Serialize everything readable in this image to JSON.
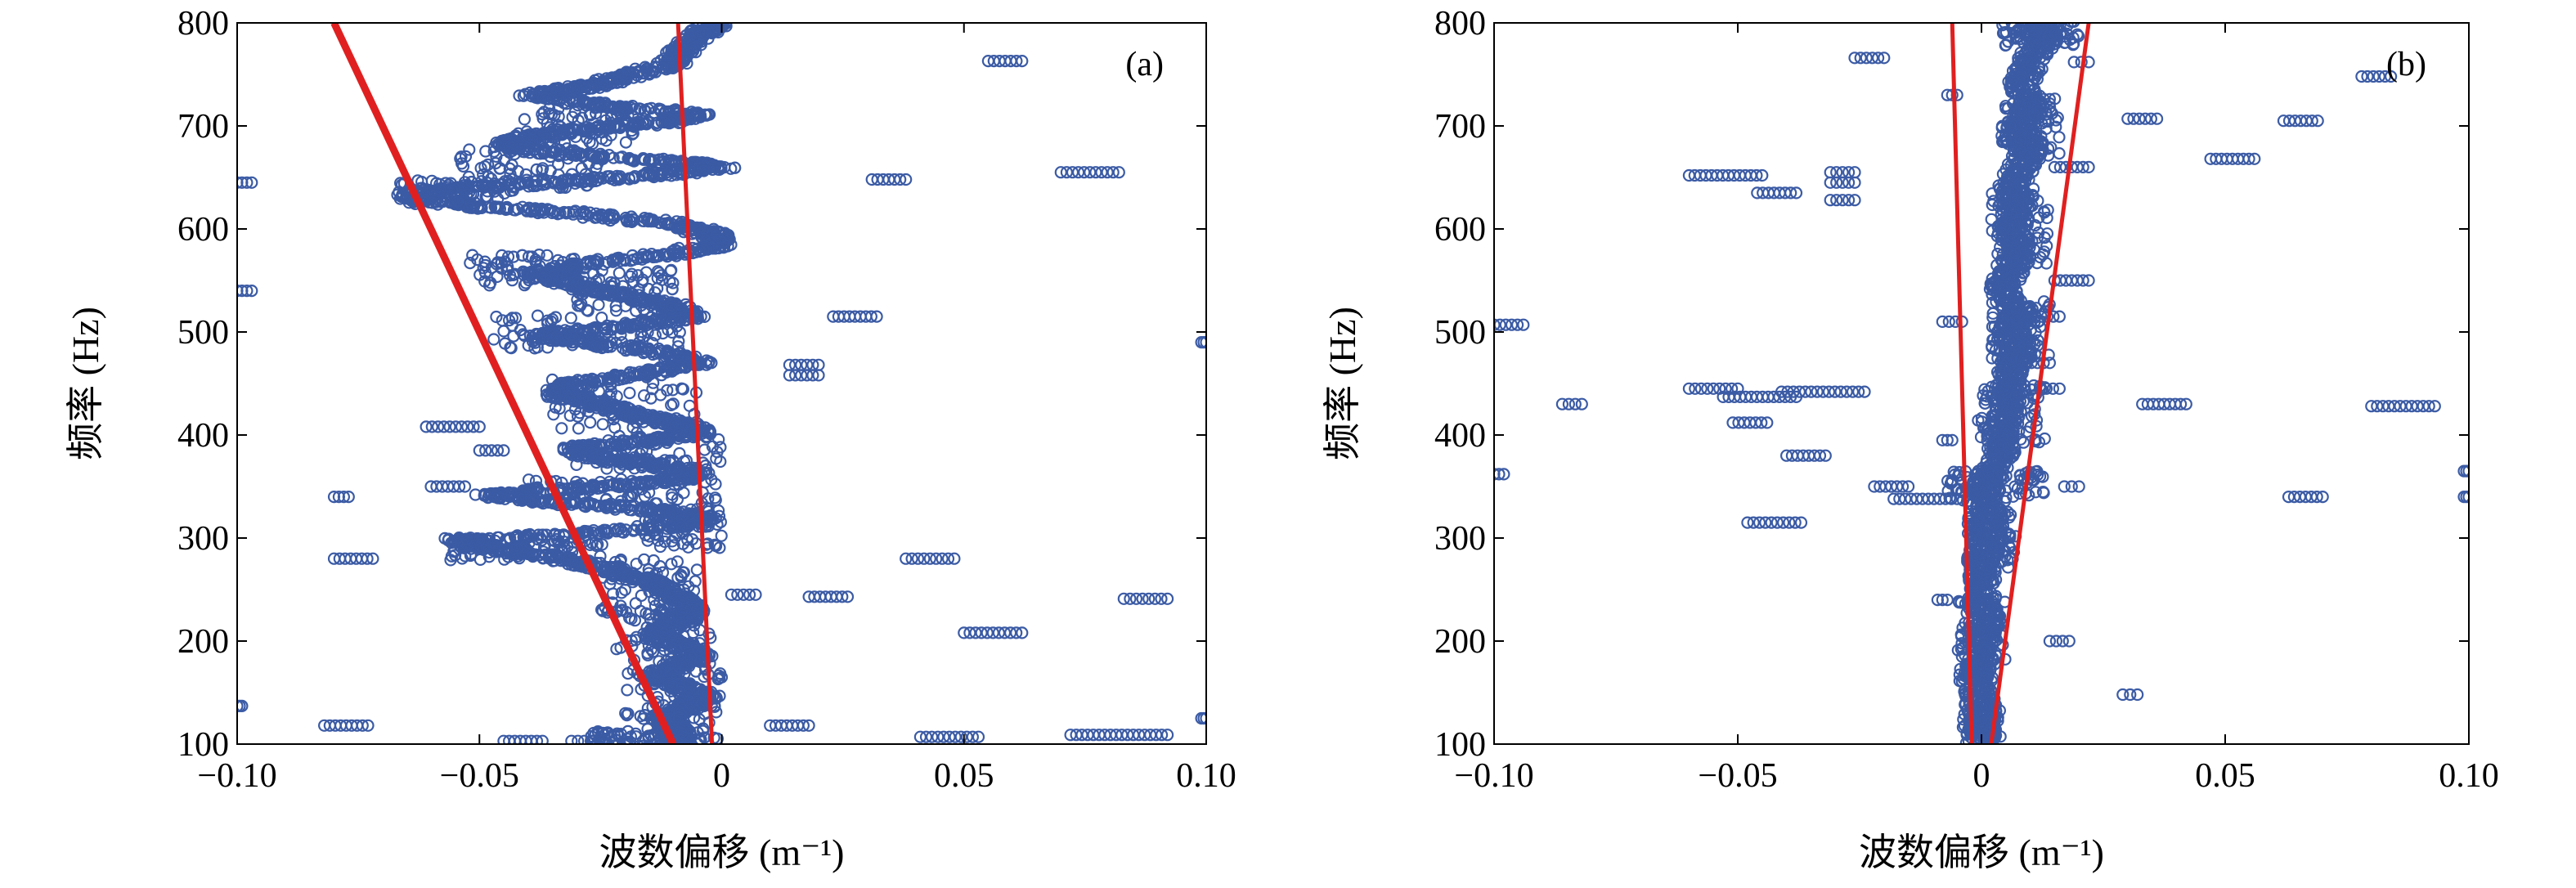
{
  "chart_data": [
    {
      "type": "scatter",
      "panel_label": "(a)",
      "xlabel": "波数偏移 (m⁻¹)",
      "ylabel": "频率 (Hz)",
      "xlim": [
        -0.1,
        0.1
      ],
      "ylim": [
        100,
        800
      ],
      "xticks": [
        -0.1,
        -0.05,
        0,
        0.05,
        0.1
      ],
      "xtick_labels": [
        "−0.10",
        "−0.05",
        "0",
        "0.05",
        "0.10"
      ],
      "yticks": [
        100,
        200,
        300,
        400,
        500,
        600,
        700,
        800
      ],
      "ytick_labels": [
        "100",
        "200",
        "300",
        "400",
        "500",
        "600",
        "700",
        "800"
      ],
      "marker_color": "#3b5ba5",
      "line_color": "#e02020",
      "ridge_points": [
        [
          -0.001,
          800
        ],
        [
          -0.004,
          790
        ],
        [
          -0.008,
          775
        ],
        [
          -0.01,
          760
        ],
        [
          -0.02,
          748
        ],
        [
          -0.028,
          738
        ],
        [
          -0.04,
          730
        ],
        [
          -0.025,
          720
        ],
        [
          -0.005,
          712
        ],
        [
          -0.01,
          705
        ],
        [
          -0.025,
          698
        ],
        [
          -0.04,
          690
        ],
        [
          -0.045,
          680
        ],
        [
          -0.03,
          672
        ],
        [
          -0.01,
          665
        ],
        [
          0.0,
          660
        ],
        [
          -0.015,
          652
        ],
        [
          -0.035,
          645
        ],
        [
          -0.058,
          638
        ],
        [
          -0.064,
          630
        ],
        [
          -0.05,
          622
        ],
        [
          -0.03,
          615
        ],
        [
          -0.01,
          605
        ],
        [
          -0.002,
          595
        ],
        [
          0.0,
          585
        ],
        [
          -0.012,
          575
        ],
        [
          -0.03,
          565
        ],
        [
          -0.038,
          555
        ],
        [
          -0.03,
          545
        ],
        [
          -0.02,
          535
        ],
        [
          -0.01,
          525
        ],
        [
          -0.006,
          515
        ],
        [
          -0.02,
          505
        ],
        [
          -0.038,
          497
        ],
        [
          -0.028,
          490
        ],
        [
          -0.012,
          480
        ],
        [
          -0.005,
          470
        ],
        [
          -0.015,
          460
        ],
        [
          -0.03,
          450
        ],
        [
          -0.034,
          440
        ],
        [
          -0.025,
          430
        ],
        [
          -0.018,
          420
        ],
        [
          -0.01,
          412
        ],
        [
          -0.004,
          404
        ],
        [
          -0.012,
          396
        ],
        [
          -0.03,
          388
        ],
        [
          -0.028,
          380
        ],
        [
          -0.015,
          372
        ],
        [
          -0.005,
          364
        ],
        [
          -0.01,
          356
        ],
        [
          -0.03,
          348
        ],
        [
          -0.048,
          342
        ],
        [
          -0.035,
          335
        ],
        [
          -0.015,
          328
        ],
        [
          -0.004,
          320
        ],
        [
          -0.008,
          312
        ],
        [
          -0.03,
          304
        ],
        [
          -0.055,
          298
        ],
        [
          -0.048,
          290
        ],
        [
          -0.035,
          282
        ],
        [
          -0.025,
          272
        ],
        [
          -0.018,
          262
        ],
        [
          -0.012,
          252
        ],
        [
          -0.008,
          240
        ],
        [
          -0.006,
          228
        ],
        [
          -0.01,
          216
        ],
        [
          -0.014,
          205
        ],
        [
          -0.008,
          195
        ],
        [
          -0.004,
          185
        ],
        [
          -0.01,
          175
        ],
        [
          -0.014,
          165
        ],
        [
          -0.008,
          155
        ],
        [
          -0.003,
          145
        ],
        [
          -0.008,
          135
        ],
        [
          -0.012,
          125
        ],
        [
          -0.01,
          115
        ],
        [
          -0.008,
          105
        ]
      ],
      "blobs": [
        [
          -0.03,
          700,
          0.012,
          18
        ],
        [
          -0.04,
          660,
          0.015,
          20
        ],
        [
          -0.055,
          635,
          0.012,
          12
        ],
        [
          -0.04,
          560,
          0.012,
          15
        ],
        [
          -0.02,
          540,
          0.01,
          20
        ],
        [
          -0.028,
          500,
          0.02,
          16
        ],
        [
          -0.02,
          430,
          0.015,
          25
        ],
        [
          -0.015,
          385,
          0.015,
          18
        ],
        [
          -0.02,
          345,
          0.02,
          12
        ],
        [
          -0.008,
          310,
          0.008,
          20
        ],
        [
          -0.04,
          290,
          0.016,
          12
        ],
        [
          -0.015,
          250,
          0.01,
          30
        ],
        [
          -0.012,
          200,
          0.01,
          35
        ],
        [
          -0.01,
          140,
          0.01,
          35
        ],
        [
          -0.015,
          105,
          0.012,
          8
        ]
      ],
      "outlier_segments": [
        [
          -0.1,
          -0.097,
          645
        ],
        [
          -0.1,
          -0.097,
          540
        ],
        [
          -0.1,
          -0.099,
          137
        ],
        [
          -0.082,
          -0.073,
          118
        ],
        [
          -0.08,
          -0.072,
          280
        ],
        [
          -0.08,
          -0.077,
          340
        ],
        [
          -0.061,
          -0.05,
          408
        ],
        [
          -0.05,
          -0.045,
          385
        ],
        [
          -0.045,
          -0.037,
          103
        ],
        [
          -0.06,
          -0.053,
          350
        ],
        [
          -0.031,
          -0.027,
          103
        ],
        [
          0.01,
          0.018,
          118
        ],
        [
          0.018,
          0.026,
          243
        ],
        [
          0.023,
          0.032,
          515
        ],
        [
          0.031,
          0.038,
          648
        ],
        [
          0.038,
          0.048,
          280
        ],
        [
          0.041,
          0.053,
          107
        ],
        [
          0.05,
          0.062,
          208
        ],
        [
          0.055,
          0.062,
          763
        ],
        [
          0.07,
          0.082,
          655
        ],
        [
          0.072,
          0.092,
          109
        ],
        [
          0.083,
          0.092,
          241
        ],
        [
          0.099,
          0.1,
          490
        ],
        [
          0.099,
          0.1,
          125
        ],
        [
          0.014,
          0.02,
          458
        ],
        [
          0.014,
          0.02,
          468
        ],
        [
          0.002,
          0.007,
          245
        ],
        [
          -0.006,
          -0.002,
          790
        ]
      ],
      "fit_lines": [
        {
          "from": [
            -0.08,
            800
          ],
          "to": [
            -0.01,
            100
          ],
          "width": 9
        },
        {
          "from": [
            -0.009,
            800
          ],
          "to": [
            -0.002,
            100
          ],
          "width": 5
        }
      ]
    },
    {
      "type": "scatter",
      "panel_label": "(b)",
      "xlabel": "波数偏移 (m⁻¹)",
      "ylabel": "频率 (Hz)",
      "xlim": [
        -0.1,
        0.1
      ],
      "ylim": [
        100,
        800
      ],
      "xticks": [
        -0.1,
        -0.05,
        0,
        0.05,
        0.1
      ],
      "xtick_labels": [
        "−0.10",
        "−0.05",
        "0",
        "0.05",
        "0.10"
      ],
      "yticks": [
        100,
        200,
        300,
        400,
        500,
        600,
        700,
        800
      ],
      "ytick_labels": [
        "100",
        "200",
        "300",
        "400",
        "500",
        "600",
        "700",
        "800"
      ],
      "marker_color": "#3b5ba5",
      "line_color": "#e02020",
      "ridge_points": [
        [
          0.013,
          800
        ],
        [
          0.012,
          780
        ],
        [
          0.01,
          760
        ],
        [
          0.008,
          740
        ],
        [
          0.01,
          720
        ],
        [
          0.008,
          700
        ],
        [
          0.01,
          680
        ],
        [
          0.008,
          660
        ],
        [
          0.006,
          640
        ],
        [
          0.008,
          620
        ],
        [
          0.006,
          600
        ],
        [
          0.008,
          580
        ],
        [
          0.006,
          560
        ],
        [
          0.004,
          540
        ],
        [
          0.008,
          520
        ],
        [
          0.006,
          500
        ],
        [
          0.008,
          480
        ],
        [
          0.006,
          460
        ],
        [
          0.006,
          440
        ],
        [
          0.005,
          420
        ],
        [
          0.004,
          400
        ],
        [
          0.004,
          380
        ],
        [
          0.002,
          360
        ],
        [
          0.0,
          340
        ],
        [
          0.002,
          320
        ],
        [
          0.001,
          300
        ],
        [
          0.0,
          280
        ],
        [
          0.0,
          260
        ],
        [
          0.0,
          240
        ],
        [
          0.001,
          220
        ],
        [
          0.0,
          200
        ],
        [
          0.0,
          180
        ],
        [
          -0.001,
          160
        ],
        [
          0.0,
          140
        ],
        [
          0.0,
          120
        ],
        [
          0.0,
          105
        ]
      ],
      "blobs": [
        [
          0.012,
          790,
          0.008,
          12
        ],
        [
          0.01,
          700,
          0.006,
          30
        ],
        [
          0.008,
          600,
          0.006,
          40
        ],
        [
          0.008,
          500,
          0.006,
          30
        ],
        [
          0.006,
          420,
          0.007,
          30
        ],
        [
          0.003,
          350,
          0.01,
          15
        ],
        [
          0.002,
          300,
          0.005,
          30
        ],
        [
          0.0,
          200,
          0.005,
          40
        ],
        [
          0.0,
          120,
          0.004,
          20
        ]
      ],
      "outlier_segments": [
        [
          -0.026,
          -0.02,
          766
        ],
        [
          -0.007,
          -0.005,
          730
        ],
        [
          -0.1,
          -0.094,
          507
        ],
        [
          -0.1,
          -0.098,
          362
        ],
        [
          -0.086,
          -0.082,
          430
        ],
        [
          -0.06,
          -0.045,
          652
        ],
        [
          -0.046,
          -0.038,
          635
        ],
        [
          -0.031,
          -0.026,
          655
        ],
        [
          -0.031,
          -0.026,
          645
        ],
        [
          -0.031,
          -0.026,
          628
        ],
        [
          -0.06,
          -0.05,
          445
        ],
        [
          -0.053,
          -0.038,
          437
        ],
        [
          -0.041,
          -0.024,
          442
        ],
        [
          -0.051,
          -0.044,
          412
        ],
        [
          -0.04,
          -0.032,
          380
        ],
        [
          -0.048,
          -0.037,
          315
        ],
        [
          -0.022,
          -0.015,
          350
        ],
        [
          -0.018,
          -0.005,
          338
        ],
        [
          -0.008,
          -0.004,
          510
        ],
        [
          -0.008,
          -0.006,
          395
        ],
        [
          -0.009,
          -0.007,
          240
        ],
        [
          0.015,
          0.022,
          550
        ],
        [
          0.015,
          0.022,
          660
        ],
        [
          0.019,
          0.022,
          762
        ],
        [
          0.017,
          0.02,
          350
        ],
        [
          0.029,
          0.032,
          148
        ],
        [
          0.03,
          0.036,
          707
        ],
        [
          0.033,
          0.042,
          430
        ],
        [
          0.047,
          0.056,
          668
        ],
        [
          0.062,
          0.069,
          705
        ],
        [
          0.063,
          0.07,
          340
        ],
        [
          0.078,
          0.084,
          748
        ],
        [
          0.08,
          0.093,
          428
        ],
        [
          0.099,
          0.1,
          365
        ],
        [
          0.099,
          0.1,
          340
        ],
        [
          0.014,
          0.018,
          200
        ],
        [
          0.012,
          0.016,
          445
        ],
        [
          0.009,
          0.014,
          470
        ],
        [
          0.011,
          0.016,
          515
        ]
      ],
      "fit_lines": [
        {
          "from": [
            -0.006,
            800
          ],
          "to": [
            -0.002,
            100
          ],
          "width": 5
        },
        {
          "from": [
            0.022,
            800
          ],
          "to": [
            0.002,
            100
          ],
          "width": 5
        }
      ]
    }
  ]
}
